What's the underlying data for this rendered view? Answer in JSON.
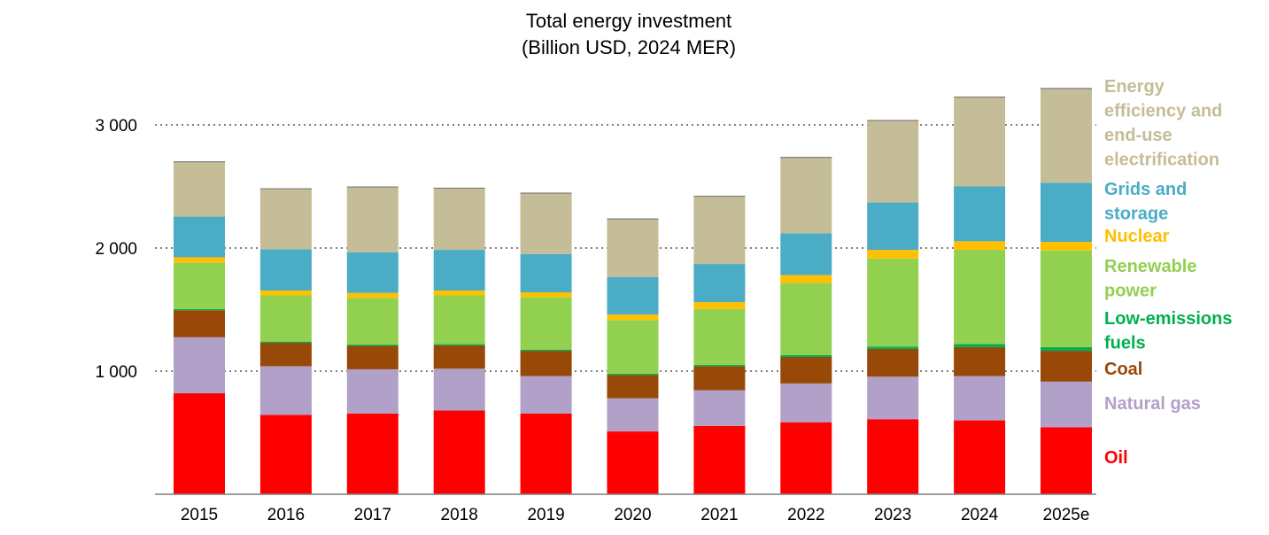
{
  "chart_data": {
    "type": "bar",
    "stacked": true,
    "title": "Total energy investment",
    "subtitle": "(Billion USD, 2024 MER)",
    "categories": [
      "2015",
      "2016",
      "2017",
      "2018",
      "2019",
      "2020",
      "2021",
      "2022",
      "2023",
      "2024",
      "2025e"
    ],
    "ylim": [
      0,
      3000
    ],
    "yticks": [
      1000,
      2000,
      3000
    ],
    "ytick_labels": [
      "1 000",
      "2 000",
      "3 000"
    ],
    "grid": "horizontal dotted at y ticks",
    "legend_position": "right",
    "series": [
      {
        "name": "Oil",
        "color": "#ff0000",
        "values": [
          820,
          645,
          655,
          680,
          655,
          510,
          555,
          585,
          610,
          600,
          545
        ]
      },
      {
        "name": "Natural gas",
        "color": "#b1a0c7",
        "values": [
          455,
          395,
          360,
          340,
          305,
          270,
          290,
          315,
          345,
          360,
          370
        ]
      },
      {
        "name": "Coal",
        "color": "#984807",
        "values": [
          220,
          190,
          190,
          190,
          205,
          190,
          195,
          215,
          225,
          235,
          250
        ]
      },
      {
        "name": "Low-emissions fuels",
        "color": "#00b050",
        "values": [
          10,
          10,
          10,
          10,
          10,
          10,
          10,
          15,
          20,
          25,
          30
        ]
      },
      {
        "name": "Renewable power",
        "color": "#92d050",
        "values": [
          375,
          375,
          380,
          395,
          425,
          435,
          455,
          585,
          715,
          765,
          785
        ]
      },
      {
        "name": "Nuclear",
        "color": "#ffc000",
        "values": [
          45,
          40,
          40,
          40,
          40,
          45,
          55,
          65,
          70,
          70,
          70
        ]
      },
      {
        "name": "Grids and storage",
        "color": "#4bacc6",
        "values": [
          330,
          335,
          330,
          330,
          310,
          305,
          310,
          340,
          385,
          445,
          480
        ]
      },
      {
        "name": "Energy efficiency and end-use electrification",
        "color": "#c4bd97",
        "values": [
          450,
          495,
          535,
          505,
          500,
          475,
          555,
          620,
          670,
          730,
          770
        ]
      }
    ],
    "legend_lines": [
      {
        "series": "Energy efficiency and end-use electrification",
        "lines": [
          "Energy",
          "efficiency and",
          "end-use",
          "electrification"
        ]
      },
      {
        "series": "Grids and storage",
        "lines": [
          "Grids and",
          "storage"
        ]
      },
      {
        "series": "Nuclear",
        "lines": [
          "Nuclear"
        ]
      },
      {
        "series": "Renewable power",
        "lines": [
          "Renewable",
          "power"
        ]
      },
      {
        "series": "Low-emissions fuels",
        "lines": [
          "Low-emissions",
          "fuels"
        ]
      },
      {
        "series": "Coal",
        "lines": [
          "Coal"
        ]
      },
      {
        "series": "Natural gas",
        "lines": [
          "Natural gas"
        ]
      },
      {
        "series": "Oil",
        "lines": [
          "Oil"
        ]
      }
    ]
  }
}
